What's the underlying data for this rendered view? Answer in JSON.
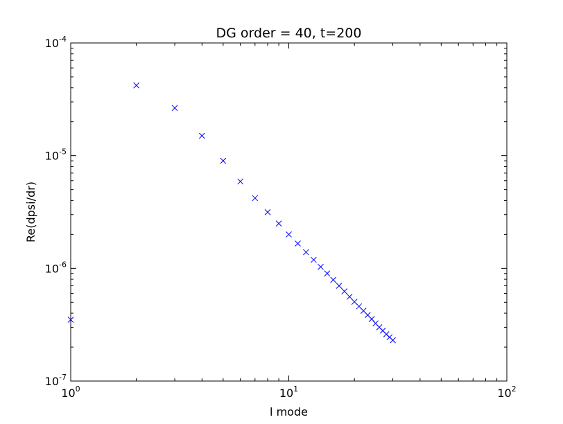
{
  "chart_data": {
    "type": "scatter",
    "title": "DG order = 40, t=200",
    "xlabel": "l mode",
    "ylabel": "Re(dpsi/dr)",
    "xscale": "log",
    "yscale": "log",
    "xlim": [
      1,
      100
    ],
    "ylim": [
      1e-07,
      0.0001
    ],
    "grid": false,
    "marker": "x",
    "marker_color": "#0000ff",
    "x_ticks": [
      {
        "value": 1,
        "base": "10",
        "exp": "0"
      },
      {
        "value": 10,
        "base": "10",
        "exp": "1"
      },
      {
        "value": 100,
        "base": "10",
        "exp": "2"
      }
    ],
    "y_ticks": [
      {
        "value": 1e-07,
        "base": "10",
        "exp": "-7"
      },
      {
        "value": 1e-06,
        "base": "10",
        "exp": "-6"
      },
      {
        "value": 1e-05,
        "base": "10",
        "exp": "-5"
      },
      {
        "value": 0.0001,
        "base": "10",
        "exp": "-4"
      }
    ],
    "x": [
      1,
      2,
      3,
      4,
      5,
      6,
      7,
      8,
      9,
      10,
      11,
      12,
      13,
      14,
      15,
      16,
      17,
      18,
      19,
      20,
      21,
      22,
      23,
      24,
      25,
      26,
      27,
      28,
      29,
      30
    ],
    "y": [
      3.5e-07,
      4.2e-05,
      2.65e-05,
      1.5e-05,
      9e-06,
      5.9e-06,
      4.2e-06,
      3.15e-06,
      2.5e-06,
      2e-06,
      1.66e-06,
      1.39e-06,
      1.19e-06,
      1.03e-06,
      9e-07,
      7.9e-07,
      7e-07,
      6.25e-07,
      5.6e-07,
      5.05e-07,
      4.6e-07,
      4.2e-07,
      3.85e-07,
      3.55e-07,
      3.25e-07,
      3e-07,
      2.8e-07,
      2.6e-07,
      2.45e-07,
      2.3e-07
    ]
  }
}
